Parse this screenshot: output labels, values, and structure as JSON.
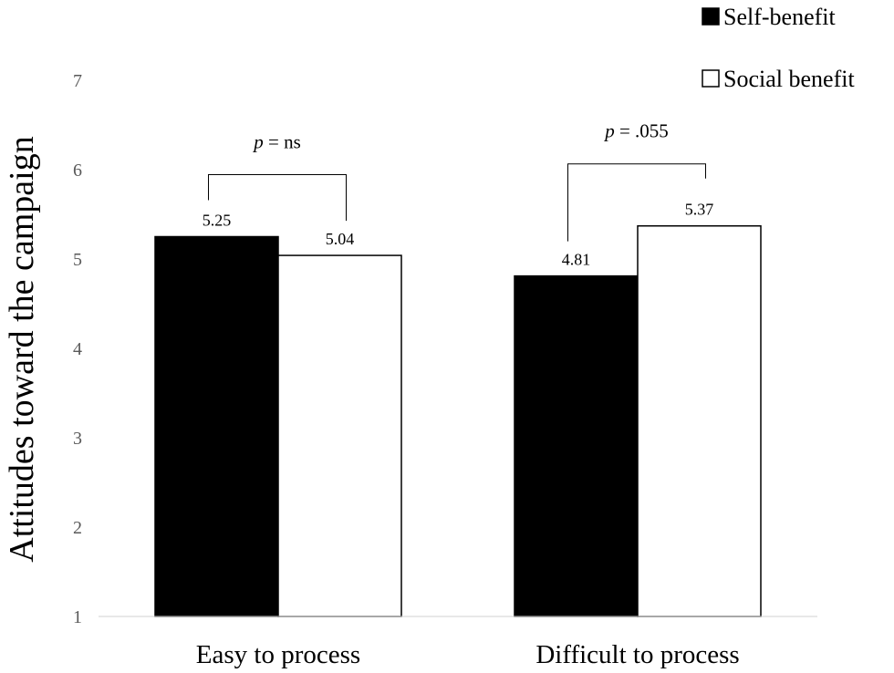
{
  "chart_data": {
    "type": "bar",
    "categories": [
      "Easy to process",
      "Difficult to process"
    ],
    "series": [
      {
        "name": "Self-benefit",
        "values": [
          5.25,
          4.81
        ],
        "color": "#000000"
      },
      {
        "name": "Social benefit",
        "values": [
          5.04,
          5.37
        ],
        "color": "#ffffff"
      }
    ],
    "data_labels": [
      [
        "5.25",
        "5.04"
      ],
      [
        "4.81",
        "5.37"
      ]
    ],
    "xlabel": "",
    "ylabel": "Attitudes toward the campaign",
    "ylim": [
      1,
      7
    ],
    "yticks": [
      "1",
      "2",
      "3",
      "4",
      "5",
      "6",
      "7"
    ],
    "grid": false,
    "legend_position": "top-right",
    "annotations": [
      {
        "category": "Easy to process",
        "prefix": "p",
        "text": " = ns"
      },
      {
        "category": "Difficult to process",
        "prefix": "p",
        "text": " = .055"
      }
    ]
  }
}
